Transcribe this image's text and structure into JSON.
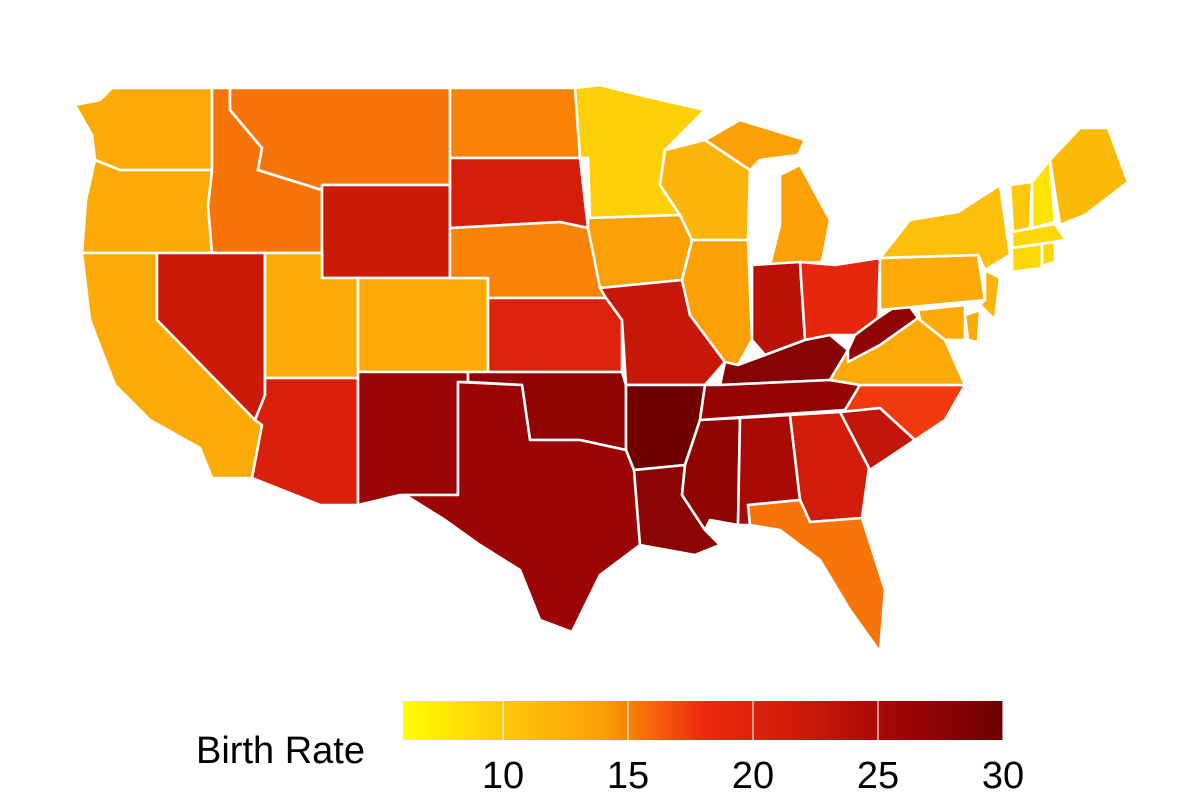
{
  "legend": {
    "title": "Birth Rate",
    "min": 6,
    "max": 30,
    "ticks": [
      10,
      15,
      20,
      25,
      30
    ],
    "colors": [
      "#ffff00",
      "#fdc90a",
      "#fba005",
      "#ee2a0e",
      "#cc1a08",
      "#9c0505",
      "#6e0000"
    ]
  },
  "states": [
    {
      "code": "WA",
      "value": 13.0
    },
    {
      "code": "OR",
      "value": 13.0
    },
    {
      "code": "CA",
      "value": 13.0
    },
    {
      "code": "ID",
      "value": 15.5
    },
    {
      "code": "NV",
      "value": 22.0
    },
    {
      "code": "MT",
      "value": 15.5
    },
    {
      "code": "WY",
      "value": 22.0
    },
    {
      "code": "UT",
      "value": 13.0
    },
    {
      "code": "CO",
      "value": 13.0
    },
    {
      "code": "AZ",
      "value": 20.5
    },
    {
      "code": "NM",
      "value": 26.0
    },
    {
      "code": "ND",
      "value": 15.0
    },
    {
      "code": "SD",
      "value": 21.0
    },
    {
      "code": "NE",
      "value": 15.0
    },
    {
      "code": "KS",
      "value": 20.0
    },
    {
      "code": "OK",
      "value": 27.0
    },
    {
      "code": "TX",
      "value": 26.0
    },
    {
      "code": "MN",
      "value": 9.5
    },
    {
      "code": "IA",
      "value": 14.0
    },
    {
      "code": "MO",
      "value": 22.5
    },
    {
      "code": "AR",
      "value": 30.0
    },
    {
      "code": "LA",
      "value": 27.5
    },
    {
      "code": "WI",
      "value": 12.0
    },
    {
      "code": "IL",
      "value": 14.0
    },
    {
      "code": "MI",
      "value": 14.0
    },
    {
      "code": "IN",
      "value": 23.5
    },
    {
      "code": "OH",
      "value": 19.0
    },
    {
      "code": "KY",
      "value": 28.0
    },
    {
      "code": "TN",
      "value": 26.5
    },
    {
      "code": "MS",
      "value": 27.0
    },
    {
      "code": "AL",
      "value": 25.0
    },
    {
      "code": "GA",
      "value": 21.5
    },
    {
      "code": "FL",
      "value": 15.5
    },
    {
      "code": "SC",
      "value": 23.0
    },
    {
      "code": "NC",
      "value": 17.5
    },
    {
      "code": "VA",
      "value": 13.0
    },
    {
      "code": "WV",
      "value": 27.0
    },
    {
      "code": "PA",
      "value": 13.0
    },
    {
      "code": "NY",
      "value": 11.0
    },
    {
      "code": "NJ",
      "value": 12.0
    },
    {
      "code": "DE",
      "value": 13.0
    },
    {
      "code": "MD",
      "value": 13.0
    },
    {
      "code": "CT",
      "value": 9.0
    },
    {
      "code": "RI",
      "value": 9.0
    },
    {
      "code": "MA",
      "value": 9.0
    },
    {
      "code": "VT",
      "value": 10.0
    },
    {
      "code": "NH",
      "value": 8.0
    },
    {
      "code": "ME",
      "value": 11.5
    }
  ]
}
